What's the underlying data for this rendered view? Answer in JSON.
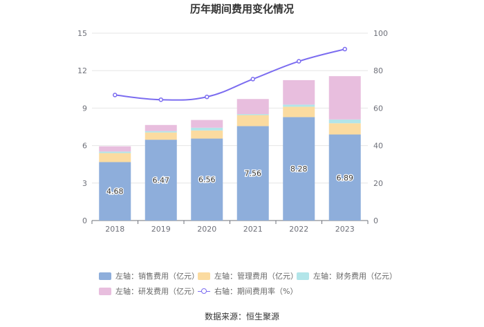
{
  "title": "历年期间费用变化情况",
  "source": "数据来源：恒生聚源",
  "chart_data": {
    "type": "bar",
    "stacked": true,
    "categories": [
      "2018",
      "2019",
      "2020",
      "2021",
      "2022",
      "2023"
    ],
    "y_left": {
      "min": 0,
      "max": 15,
      "ticks": [
        0,
        3,
        6,
        9,
        12,
        15
      ]
    },
    "y_right": {
      "min": 0,
      "max": 100,
      "ticks": [
        0,
        20,
        40,
        60,
        80,
        100
      ]
    },
    "series": [
      {
        "name": "左轴：销售费用（亿元）",
        "axis": "left",
        "type": "bar",
        "color": "#8eaedb",
        "values": [
          4.68,
          6.47,
          6.56,
          7.56,
          8.28,
          6.89
        ],
        "show_labels": true
      },
      {
        "name": "左轴：管理费用（亿元）",
        "axis": "left",
        "type": "bar",
        "color": "#fbdba0",
        "values": [
          0.72,
          0.58,
          0.65,
          0.88,
          0.83,
          0.9
        ]
      },
      {
        "name": "左轴：财务费用（亿元）",
        "axis": "left",
        "type": "bar",
        "color": "#b2e5e9",
        "values": [
          0.12,
          0.11,
          0.22,
          0.08,
          0.17,
          0.3
        ]
      },
      {
        "name": "左轴：研发费用（亿元）",
        "axis": "left",
        "type": "bar",
        "color": "#e8bede",
        "values": [
          0.42,
          0.49,
          0.62,
          1.21,
          1.96,
          3.47
        ]
      },
      {
        "name": "右轴：期间费用率（%）",
        "axis": "right",
        "type": "line",
        "color": "#7b6cf0",
        "values": [
          67,
          64.5,
          66,
          75.5,
          85,
          91.5
        ]
      }
    ]
  }
}
